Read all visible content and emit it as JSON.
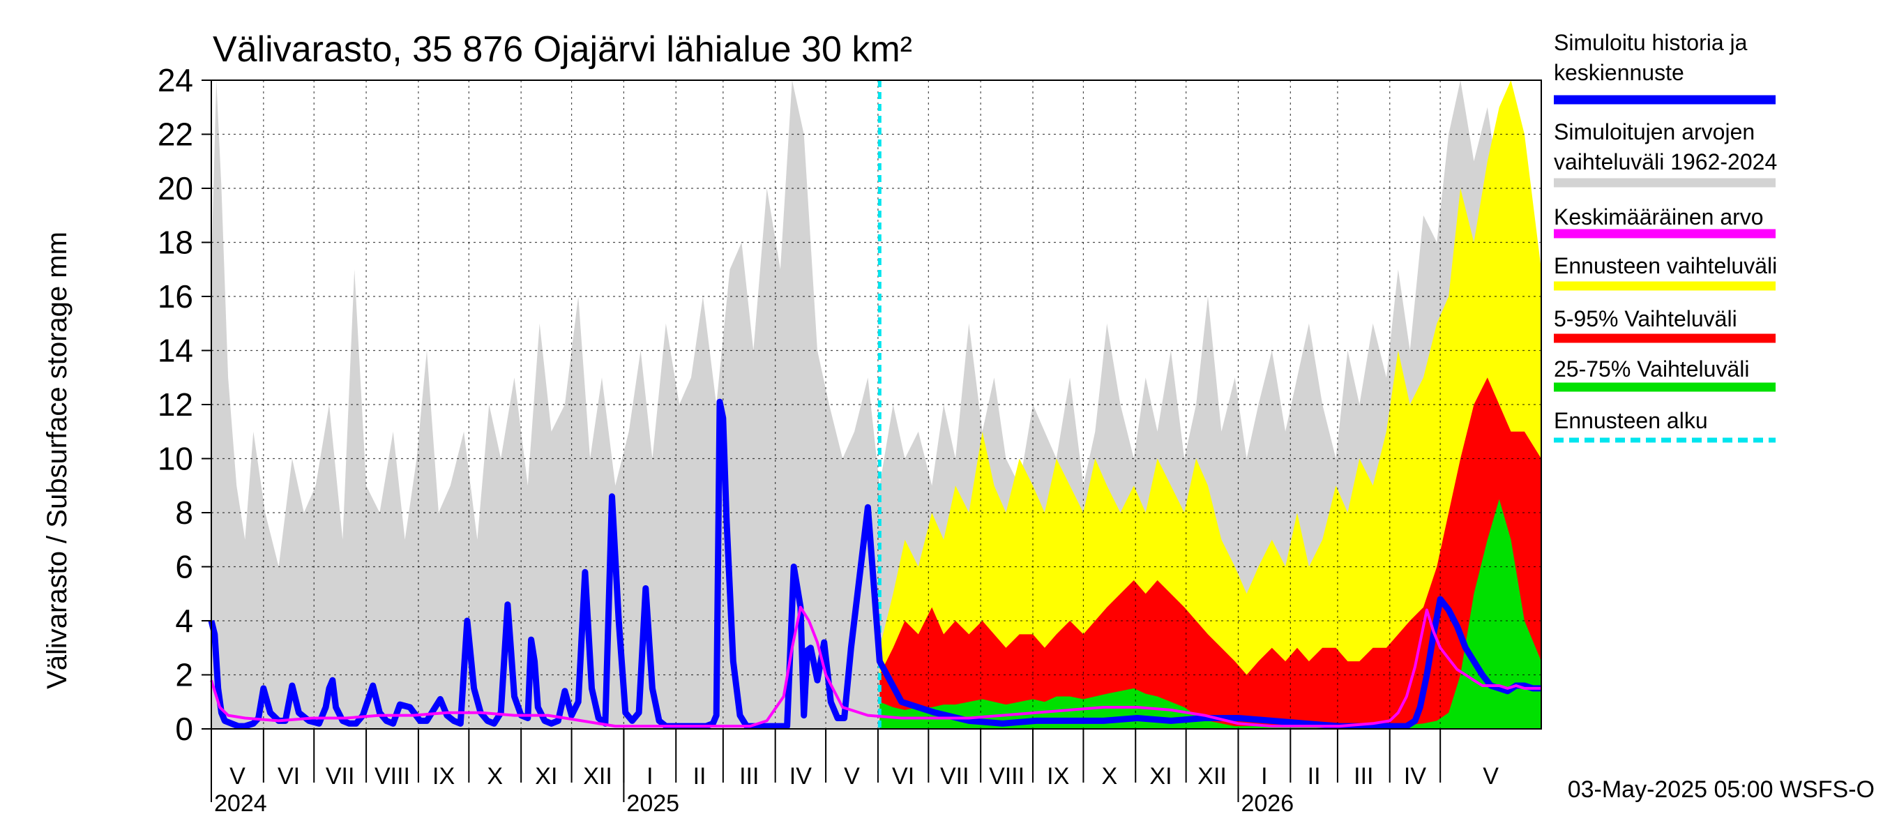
{
  "chart_data": {
    "type": "area",
    "title": "Välivarasto, 35 876 Ojajärvi lähialue 30 km²",
    "ylabel": "Välivarasto / Subsurface storage  mm",
    "xlabel": "",
    "ylim": [
      0,
      24
    ],
    "yticks": [
      0,
      2,
      4,
      6,
      8,
      10,
      12,
      14,
      16,
      18,
      20,
      22,
      24
    ],
    "grid": true,
    "x_range_days": [
      0,
      790
    ],
    "forecast_start_day": 397,
    "months": [
      {
        "label": "V",
        "start": 0,
        "end": 31
      },
      {
        "label": "VI",
        "start": 31,
        "end": 61
      },
      {
        "label": "VII",
        "start": 61,
        "end": 92
      },
      {
        "label": "VIII",
        "start": 92,
        "end": 123
      },
      {
        "label": "IX",
        "start": 123,
        "end": 153
      },
      {
        "label": "X",
        "start": 153,
        "end": 184
      },
      {
        "label": "XI",
        "start": 184,
        "end": 214
      },
      {
        "label": "XII",
        "start": 214,
        "end": 245
      },
      {
        "label": "I",
        "start": 245,
        "end": 276
      },
      {
        "label": "II",
        "start": 276,
        "end": 304
      },
      {
        "label": "III",
        "start": 304,
        "end": 335
      },
      {
        "label": "IV",
        "start": 335,
        "end": 365
      },
      {
        "label": "V",
        "start": 365,
        "end": 396
      },
      {
        "label": "VI",
        "start": 396,
        "end": 426
      },
      {
        "label": "VII",
        "start": 426,
        "end": 457
      },
      {
        "label": "VIII",
        "start": 457,
        "end": 488
      },
      {
        "label": "IX",
        "start": 488,
        "end": 518
      },
      {
        "label": "X",
        "start": 518,
        "end": 549
      },
      {
        "label": "XI",
        "start": 549,
        "end": 579
      },
      {
        "label": "XII",
        "start": 579,
        "end": 610
      },
      {
        "label": "I",
        "start": 610,
        "end": 641
      },
      {
        "label": "II",
        "start": 641,
        "end": 669
      },
      {
        "label": "III",
        "start": 669,
        "end": 700
      },
      {
        "label": "IV",
        "start": 700,
        "end": 730
      },
      {
        "label": "V",
        "start": 730,
        "end": 790
      }
    ],
    "years": [
      {
        "label": "2024",
        "day": 0
      },
      {
        "label": "2025",
        "day": 245
      },
      {
        "label": "2026",
        "day": 610
      }
    ],
    "series": [
      {
        "name": "Simuloitujen arvojen vaihteluväli 1962-2024",
        "color": "#d3d3d3",
        "x": [
          0,
          3,
          6,
          10,
          15,
          20,
          25,
          32,
          40,
          48,
          55,
          62,
          70,
          78,
          85,
          92,
          100,
          108,
          115,
          122,
          128,
          135,
          142,
          150,
          158,
          165,
          172,
          180,
          188,
          195,
          202,
          210,
          218,
          225,
          232,
          240,
          248,
          255,
          262,
          270,
          278,
          285,
          292,
          300,
          308,
          315,
          322,
          330,
          338,
          345,
          352,
          360,
          367,
          375,
          382,
          390,
          397,
          405,
          412,
          420,
          428,
          435,
          442,
          450,
          458,
          465,
          472,
          480,
          488,
          495,
          502,
          510,
          518,
          525,
          532,
          540,
          548,
          555,
          562,
          570,
          578,
          585,
          592,
          600,
          608,
          615,
          622,
          630,
          638,
          645,
          652,
          660,
          668,
          675,
          682,
          690,
          698,
          705,
          712,
          720,
          728,
          735,
          742,
          750,
          758,
          765,
          772,
          780,
          790
        ],
        "values": [
          17,
          24,
          20,
          13,
          9,
          7,
          11,
          8,
          6,
          10,
          8,
          9,
          12,
          7,
          17,
          9,
          8,
          11,
          7,
          10,
          14,
          8,
          9,
          11,
          7,
          12,
          10,
          13,
          9,
          15,
          11,
          12,
          16,
          10,
          13,
          9,
          11,
          14,
          10,
          15,
          12,
          13,
          16,
          12,
          17,
          18,
          14,
          20,
          17,
          24,
          22,
          14,
          12,
          10,
          11,
          13,
          9,
          12,
          10,
          11,
          9,
          12,
          10,
          15,
          11,
          13,
          10,
          9,
          12,
          11,
          10,
          13,
          9,
          11,
          15,
          12,
          10,
          13,
          11,
          14,
          10,
          12,
          16,
          11,
          13,
          10,
          12,
          14,
          11,
          13,
          15,
          12,
          10,
          14,
          12,
          15,
          13,
          17,
          14,
          19,
          18,
          22,
          24,
          21,
          23,
          20,
          18,
          16,
          14
        ]
      },
      {
        "name": "Ennusteen vaihteluväli",
        "color": "#ffff00",
        "x": [
          397,
          405,
          412,
          420,
          428,
          435,
          442,
          450,
          458,
          465,
          472,
          480,
          488,
          495,
          502,
          510,
          518,
          525,
          532,
          540,
          548,
          555,
          562,
          570,
          578,
          585,
          592,
          600,
          608,
          615,
          622,
          630,
          638,
          645,
          652,
          660,
          668,
          675,
          682,
          690,
          698,
          705,
          712,
          720,
          728,
          735,
          742,
          750,
          758,
          765,
          772,
          780,
          790
        ],
        "values": [
          3,
          5,
          7,
          6,
          8,
          7,
          9,
          8,
          11,
          9,
          8,
          10,
          9,
          8,
          10,
          9,
          8,
          10,
          9,
          8,
          9,
          8,
          10,
          9,
          8,
          10,
          9,
          7,
          6,
          5,
          6,
          7,
          6,
          8,
          6,
          7,
          9,
          8,
          10,
          9,
          11,
          14,
          12,
          13,
          15,
          16,
          20,
          18,
          21,
          23,
          24,
          22,
          17
        ]
      },
      {
        "name": "5-95% Vaihteluväli",
        "color": "#ff0000",
        "x": [
          397,
          405,
          412,
          420,
          428,
          435,
          442,
          450,
          458,
          465,
          472,
          480,
          488,
          495,
          502,
          510,
          518,
          525,
          532,
          540,
          548,
          555,
          562,
          570,
          578,
          585,
          592,
          600,
          608,
          615,
          622,
          630,
          638,
          645,
          652,
          660,
          668,
          675,
          682,
          690,
          698,
          705,
          712,
          720,
          728,
          735,
          742,
          750,
          758,
          765,
          772,
          780,
          790
        ],
        "values": [
          2,
          3,
          4,
          3.5,
          4.5,
          3.5,
          4,
          3.5,
          4,
          3.5,
          3,
          3.5,
          3.5,
          3,
          3.5,
          4,
          3.5,
          4,
          4.5,
          5,
          5.5,
          5,
          5.5,
          5,
          4.5,
          4,
          3.5,
          3,
          2.5,
          2,
          2.5,
          3,
          2.5,
          3,
          2.5,
          3,
          3,
          2.5,
          2.5,
          3,
          3,
          3.5,
          4,
          4.5,
          6,
          8,
          10,
          12,
          13,
          12,
          11,
          11,
          10
        ]
      },
      {
        "name": "25-75% Vaihteluväli",
        "color": "#00e000",
        "x": [
          397,
          405,
          412,
          420,
          428,
          435,
          442,
          450,
          458,
          465,
          472,
          480,
          488,
          495,
          502,
          510,
          518,
          525,
          532,
          540,
          548,
          555,
          562,
          570,
          578,
          585,
          592,
          600,
          608,
          615,
          622,
          630,
          638,
          645,
          652,
          660,
          668,
          675,
          682,
          690,
          698,
          705,
          712,
          720,
          728,
          735,
          742,
          750,
          758,
          765,
          772,
          780,
          790
        ],
        "values": [
          1,
          0.8,
          0.7,
          0.8,
          0.8,
          0.9,
          0.9,
          1,
          1.1,
          1,
          0.9,
          1,
          1.1,
          1,
          1.2,
          1.2,
          1.1,
          1.2,
          1.3,
          1.4,
          1.5,
          1.3,
          1.2,
          1,
          0.8,
          0.5,
          0.3,
          0.2,
          0.1,
          0.1,
          0.1,
          0.1,
          0.1,
          0.1,
          0.1,
          0.1,
          0.1,
          0.1,
          0.1,
          0.1,
          0.1,
          0.1,
          0.15,
          0.2,
          0.3,
          0.6,
          2,
          5,
          7,
          8.5,
          7,
          4,
          2.5
        ]
      },
      {
        "name": "Simuloitu historia ja keskiennuste",
        "color": "#0000ff",
        "x": [
          0,
          2,
          4,
          6,
          8,
          12,
          16,
          20,
          25,
          28,
          31,
          35,
          40,
          44,
          48,
          52,
          58,
          64,
          68,
          70,
          72,
          74,
          78,
          82,
          86,
          90,
          96,
          100,
          104,
          108,
          112,
          118,
          124,
          128,
          132,
          136,
          140,
          144,
          148,
          152,
          156,
          160,
          164,
          168,
          172,
          176,
          180,
          184,
          188,
          190,
          192,
          194,
          198,
          202,
          206,
          210,
          214,
          218,
          222,
          226,
          230,
          234,
          238,
          242,
          246,
          250,
          254,
          258,
          262,
          266,
          270,
          272,
          274,
          276,
          278,
          282,
          286,
          290,
          294,
          298,
          300,
          302,
          304,
          306,
          310,
          314,
          318,
          322,
          326,
          330,
          334,
          338,
          342,
          346,
          350,
          352,
          354,
          356,
          360,
          364,
          368,
          372,
          376,
          380,
          390,
          397,
          410,
          430,
          450,
          470,
          490,
          510,
          530,
          550,
          570,
          590,
          610,
          630,
          650,
          670,
          690,
          700,
          705,
          710,
          715,
          718,
          722,
          726,
          730,
          735,
          740,
          745,
          750,
          755,
          760,
          765,
          770,
          775,
          780,
          785,
          790
        ],
        "values": [
          4,
          3.5,
          1.5,
          0.6,
          0.3,
          0.2,
          0.1,
          0.1,
          0.2,
          0.4,
          1.5,
          0.6,
          0.3,
          0.3,
          1.6,
          0.6,
          0.3,
          0.2,
          0.8,
          1.5,
          1.8,
          0.8,
          0.3,
          0.2,
          0.2,
          0.5,
          1.6,
          0.6,
          0.3,
          0.2,
          0.9,
          0.8,
          0.3,
          0.3,
          0.7,
          1.1,
          0.5,
          0.3,
          0.2,
          4,
          1.5,
          0.6,
          0.3,
          0.2,
          0.6,
          4.6,
          1.2,
          0.5,
          0.4,
          3.3,
          2.5,
          0.8,
          0.3,
          0.2,
          0.3,
          1.4,
          0.5,
          1.0,
          5.8,
          1.5,
          0.4,
          0.2,
          8.6,
          4,
          0.6,
          0.3,
          0.6,
          5.2,
          1.5,
          0.3,
          0.1,
          0.1,
          0.1,
          0.1,
          0.1,
          0.1,
          0.1,
          0.1,
          0.1,
          0.2,
          0.5,
          12.1,
          11.5,
          7.8,
          2.5,
          0.5,
          0.1,
          0.1,
          0.1,
          0.1,
          0.1,
          0.1,
          0.1,
          6,
          4.5,
          0.5,
          2.9,
          3.0,
          1.8,
          3.2,
          1.0,
          0.4,
          0.4,
          3.0,
          8.2,
          2.5,
          1.0,
          0.6,
          0.3,
          0.2,
          0.3,
          0.3,
          0.3,
          0.4,
          0.3,
          0.4,
          0.4,
          0.3,
          0.2,
          0.1,
          0.1,
          0.1,
          0.1,
          0.1,
          0.3,
          0.8,
          2.0,
          3.5,
          4.8,
          4.4,
          3.8,
          3.0,
          2.5,
          2.0,
          1.6,
          1.5,
          1.4,
          1.6,
          1.6,
          1.5,
          1.5
        ]
      },
      {
        "name": "Keskimääräinen arvo",
        "color": "#ff00ff",
        "x": [
          0,
          5,
          10,
          20,
          40,
          60,
          80,
          100,
          120,
          140,
          160,
          180,
          200,
          220,
          240,
          260,
          280,
          300,
          320,
          330,
          340,
          345,
          350,
          355,
          360,
          365,
          375,
          390,
          410,
          430,
          450,
          470,
          490,
          510,
          530,
          550,
          570,
          590,
          610,
          630,
          650,
          670,
          690,
          700,
          705,
          710,
          715,
          718,
          722,
          726,
          730,
          735,
          740,
          745,
          750,
          755,
          760,
          765,
          770,
          775,
          780,
          785,
          790
        ],
        "values": [
          1.8,
          0.8,
          0.5,
          0.4,
          0.3,
          0.4,
          0.4,
          0.5,
          0.5,
          0.6,
          0.6,
          0.5,
          0.5,
          0.3,
          0.1,
          0.1,
          0.1,
          0.1,
          0.1,
          0.3,
          1.2,
          3.0,
          4.5,
          4.0,
          3.2,
          2.0,
          0.8,
          0.5,
          0.4,
          0.4,
          0.4,
          0.5,
          0.6,
          0.7,
          0.8,
          0.8,
          0.7,
          0.5,
          0.2,
          0.1,
          0.1,
          0.1,
          0.2,
          0.3,
          0.6,
          1.2,
          2.3,
          3.2,
          4.4,
          3.6,
          3.0,
          2.6,
          2.2,
          2.0,
          1.8,
          1.6,
          1.6,
          1.6,
          1.5,
          1.6,
          1.5,
          1.5,
          1.5
        ]
      }
    ],
    "legend": [
      {
        "label": "Simuloitu historia ja",
        "label2": "keskiennuste",
        "color": "#0000ff",
        "style": "solid"
      },
      {
        "label": "Simuloitujen arvojen",
        "label2": "vaihteluväli 1962-2024",
        "color": "#d3d3d3",
        "style": "solid"
      },
      {
        "label": "Keskimääräinen arvo",
        "label2": "",
        "color": "#ff00ff",
        "style": "solid"
      },
      {
        "label": "Ennusteen vaihteluväli",
        "label2": "",
        "color": "#ffff00",
        "style": "solid"
      },
      {
        "label": "5-95% Vaihteluväli",
        "label2": "",
        "color": "#ff0000",
        "style": "solid"
      },
      {
        "label": "25-75% Vaihteluväli",
        "label2": "",
        "color": "#00e000",
        "style": "solid"
      },
      {
        "label": "Ennusteen alku",
        "label2": "",
        "color": "#00e5ee",
        "style": "dashed"
      }
    ],
    "legend_position": "right",
    "footer": "03-May-2025 05:00 WSFS-O"
  }
}
